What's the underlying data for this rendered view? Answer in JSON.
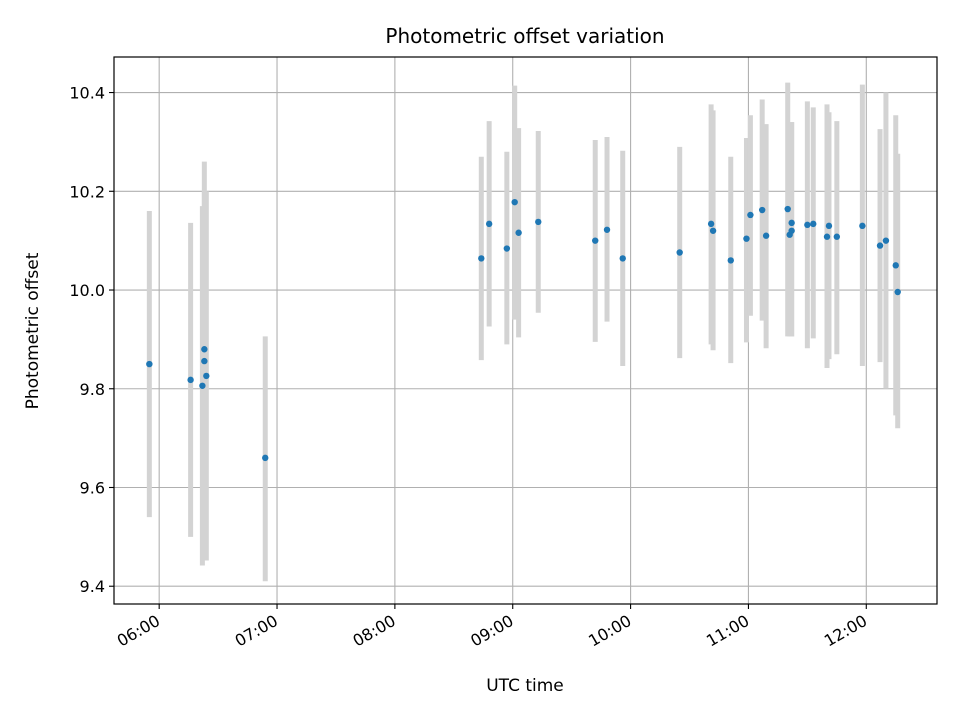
{
  "chart_data": {
    "type": "scatter",
    "title": "Photometric offset variation",
    "xlabel": "UTC time",
    "ylabel": "Photometric offset",
    "xlim": [
      "05:37",
      "12:36"
    ],
    "ylim": [
      9.364,
      10.472
    ],
    "x_ticks": [
      "06:00",
      "07:00",
      "08:00",
      "09:00",
      "10:00",
      "11:00",
      "12:00"
    ],
    "y_ticks": [
      9.4,
      9.6,
      9.8,
      10.0,
      10.2,
      10.4
    ],
    "grid": true,
    "colors": {
      "point": "#1f77b4",
      "errorbar": "#d3d3d3",
      "grid": "#b0b0b0"
    },
    "points": [
      {
        "x": "05:55",
        "y": 9.85,
        "lo": 9.54,
        "hi": 10.16
      },
      {
        "x": "06:16",
        "y": 9.818,
        "lo": 9.5,
        "hi": 10.136
      },
      {
        "x": "06:22",
        "y": 9.806,
        "lo": 9.442,
        "hi": 10.17
      },
      {
        "x": "06:23",
        "y": 9.88,
        "lo": 9.5,
        "hi": 10.26
      },
      {
        "x": "06:23",
        "y": 9.856,
        "lo": 9.46,
        "hi": 10.2
      },
      {
        "x": "06:24",
        "y": 9.826,
        "lo": 9.452,
        "hi": 10.2
      },
      {
        "x": "06:54",
        "y": 9.66,
        "lo": 9.41,
        "hi": 9.906
      },
      {
        "x": "08:44",
        "y": 10.064,
        "lo": 9.858,
        "hi": 10.27
      },
      {
        "x": "08:48",
        "y": 10.134,
        "lo": 9.926,
        "hi": 10.342
      },
      {
        "x": "08:57",
        "y": 10.084,
        "lo": 9.89,
        "hi": 10.28
      },
      {
        "x": "09:01",
        "y": 10.178,
        "lo": 9.94,
        "hi": 10.414
      },
      {
        "x": "09:03",
        "y": 10.116,
        "lo": 9.904,
        "hi": 10.328
      },
      {
        "x": "09:13",
        "y": 10.138,
        "lo": 9.954,
        "hi": 10.322
      },
      {
        "x": "09:42",
        "y": 10.1,
        "lo": 9.895,
        "hi": 10.304
      },
      {
        "x": "09:48",
        "y": 10.122,
        "lo": 9.936,
        "hi": 10.31
      },
      {
        "x": "09:56",
        "y": 10.064,
        "lo": 9.846,
        "hi": 10.282
      },
      {
        "x": "10:25",
        "y": 10.076,
        "lo": 9.862,
        "hi": 10.29
      },
      {
        "x": "10:41",
        "y": 10.134,
        "lo": 9.89,
        "hi": 10.376
      },
      {
        "x": "10:42",
        "y": 10.12,
        "lo": 9.878,
        "hi": 10.364
      },
      {
        "x": "10:51",
        "y": 10.06,
        "lo": 9.852,
        "hi": 10.27
      },
      {
        "x": "10:59",
        "y": 10.104,
        "lo": 9.894,
        "hi": 10.308
      },
      {
        "x": "11:01",
        "y": 10.152,
        "lo": 9.948,
        "hi": 10.354
      },
      {
        "x": "11:07",
        "y": 10.162,
        "lo": 9.938,
        "hi": 10.386
      },
      {
        "x": "11:09",
        "y": 10.11,
        "lo": 9.882,
        "hi": 10.336
      },
      {
        "x": "11:20",
        "y": 10.164,
        "lo": 9.906,
        "hi": 10.42
      },
      {
        "x": "11:21",
        "y": 10.112,
        "lo": 9.906,
        "hi": 10.32
      },
      {
        "x": "11:22",
        "y": 10.12,
        "lo": 9.906,
        "hi": 10.34
      },
      {
        "x": "11:22",
        "y": 10.136,
        "lo": 9.906,
        "hi": 10.34
      },
      {
        "x": "11:30",
        "y": 10.132,
        "lo": 9.882,
        "hi": 10.382
      },
      {
        "x": "11:33",
        "y": 10.134,
        "lo": 9.902,
        "hi": 10.37
      },
      {
        "x": "11:40",
        "y": 10.108,
        "lo": 9.842,
        "hi": 10.376
      },
      {
        "x": "11:41",
        "y": 10.13,
        "lo": 9.86,
        "hi": 10.36
      },
      {
        "x": "11:45",
        "y": 10.108,
        "lo": 9.87,
        "hi": 10.342
      },
      {
        "x": "11:58",
        "y": 10.13,
        "lo": 9.846,
        "hi": 10.416
      },
      {
        "x": "12:07",
        "y": 10.09,
        "lo": 9.854,
        "hi": 10.326
      },
      {
        "x": "12:10",
        "y": 10.1,
        "lo": 9.8,
        "hi": 10.4
      },
      {
        "x": "12:15",
        "y": 10.05,
        "lo": 9.746,
        "hi": 10.354
      },
      {
        "x": "12:16",
        "y": 9.996,
        "lo": 9.72,
        "hi": 10.276
      }
    ]
  }
}
